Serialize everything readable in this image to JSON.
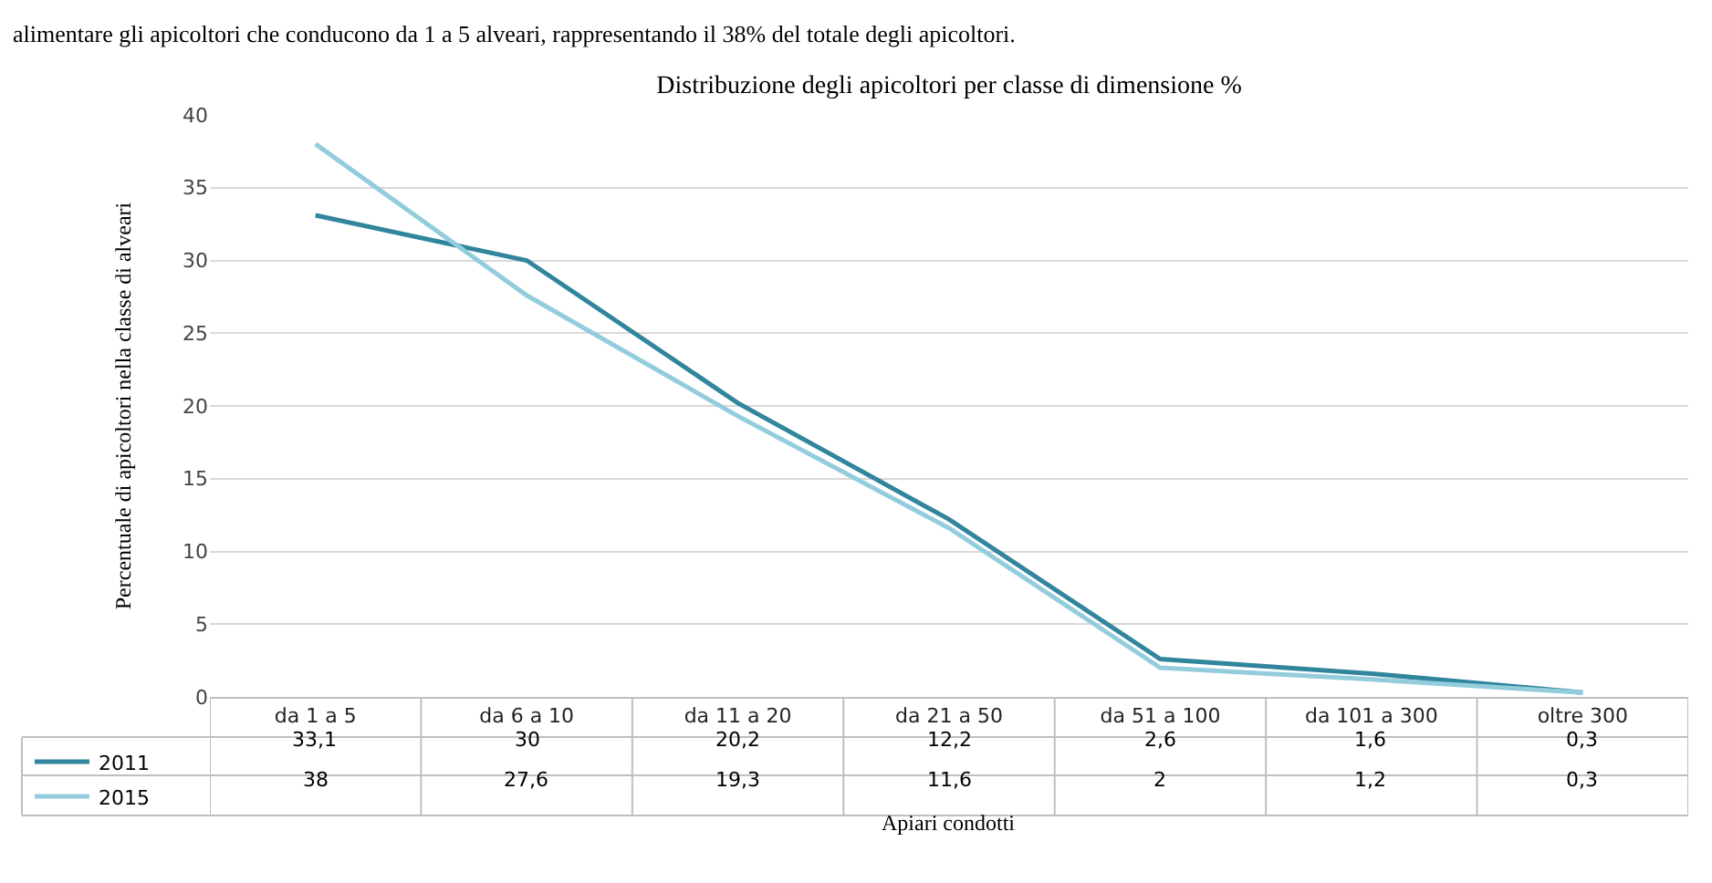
{
  "chart_data": {
    "type": "line",
    "title": "Distribuzione degli apicoltori per classe di dimensione %",
    "xlabel": "Apiari condotti",
    "ylabel": "Percentuale di apicoltori nella classe di alveari",
    "annotations": [
      "alimentare gli apicoltori che conducono da 1 a 5 alveari, rappresentando il 38% del totale degli apicoltori."
    ],
    "categories": [
      "da 1 a 5",
      "da 6 a 10",
      "da 11 a 20",
      "da 21 a 50",
      "da 51 a 100",
      "da 101 a 300",
      "oltre 300"
    ],
    "series": [
      {
        "name": "2011",
        "color": "#31859c",
        "values": [
          33.1,
          30,
          20.2,
          12.2,
          2.6,
          1.6,
          0.3
        ],
        "value_labels": [
          "33,1",
          "30",
          "20,2",
          "12,2",
          "2,6",
          "1,6",
          "0,3"
        ]
      },
      {
        "name": "2015",
        "color": "#93cddd",
        "values": [
          38,
          27.6,
          19.3,
          11.6,
          2,
          1.2,
          0.3
        ],
        "value_labels": [
          "38",
          "27,6",
          "19,3",
          "11,6",
          "2",
          "1,2",
          "0,3"
        ]
      }
    ],
    "ylim": [
      0,
      40
    ],
    "yticks": [
      0,
      5,
      10,
      15,
      20,
      25,
      30,
      35,
      40
    ],
    "grid": "y",
    "marker": "none",
    "line_style": "solid",
    "legend": "bottom left"
  }
}
